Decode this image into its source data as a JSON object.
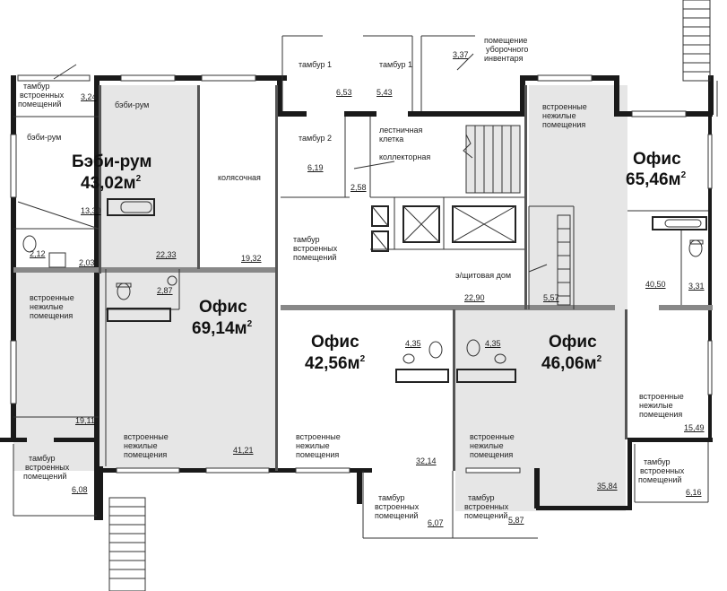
{
  "rooms": {
    "babyroom_main": {
      "title": "Бэби-рум",
      "area": "43,02м",
      "sup": "2"
    },
    "office_65": {
      "title": "Офис",
      "area": "65,46м",
      "sup": "2"
    },
    "office_69": {
      "title": "Офис",
      "area": "69,14м",
      "sup": "2"
    },
    "office_42": {
      "title": "Офис",
      "area": "42,56м",
      "sup": "2"
    },
    "office_46": {
      "title": "Офис",
      "area": "46,06м",
      "sup": "2"
    }
  },
  "labels": {
    "tambur_top_left": [
      "тамбур",
      "встроенных",
      "помещений"
    ],
    "baby_room_small": "бэби-рум",
    "baby_room_side": "бэби-рум",
    "kolyasochnaya": "колясочная",
    "tambur1_a": "тамбур 1",
    "tambur1_b": "тамбур 1",
    "tambur2": "тамбур 2",
    "uborochnoe": [
      "помещение",
      "уборочного",
      "инвентаря"
    ],
    "lestnichnaya": [
      "лестничная",
      "клетка"
    ],
    "kollektornaya": "коллекторная",
    "vstroennye_right_top": [
      "встроенные",
      "нежилые",
      "помещения"
    ],
    "tambur_center": [
      "тамбур",
      "встроенных",
      "помещений"
    ],
    "shitovaya": "э/щитовая дом",
    "vstroennye_left": [
      "встроенные",
      "нежилые",
      "помещения"
    ],
    "vstroennye_office69": [
      "встроенные",
      "нежилые",
      "помещения"
    ],
    "vstroennye_office42": [
      "встроенные",
      "нежилые",
      "помещения"
    ],
    "vstroennye_office46": [
      "встроенные",
      "нежилые",
      "помещения"
    ],
    "vstroennye_right_bottom": [
      "встроенные",
      "нежилые",
      "помещения"
    ],
    "tambur_bottom_left": [
      "тамбур",
      "встроенных",
      "помещений"
    ],
    "tambur_bottom_c1": [
      "тамбур",
      "встроенных",
      "помещений"
    ],
    "tambur_bottom_c2": [
      "тамбур",
      "встроенных",
      "помещений"
    ],
    "tambur_bottom_right": [
      "тамбур",
      "встроенных",
      "помещений"
    ]
  },
  "areas": {
    "a324": "3,24",
    "a653": "6,53",
    "a543": "5,43",
    "a337": "3,37",
    "a1330": "13,30",
    "a619": "6,19",
    "a258": "2,58",
    "a212": "2,12",
    "a203": "2,03",
    "a2233": "22,33",
    "a1932": "19,32",
    "a287": "2,87",
    "a2290": "22,90",
    "a557": "5,57",
    "a4050": "40,50",
    "a331": "3,31",
    "a435a": "4,35",
    "a435b": "4,35",
    "a1911": "19,11",
    "a4121": "41,21",
    "a3214": "32,14",
    "a3584": "35,84",
    "a1549": "15,49",
    "a608": "6,08",
    "a607": "6,07",
    "a587": "5,87",
    "a616": "6,16"
  }
}
